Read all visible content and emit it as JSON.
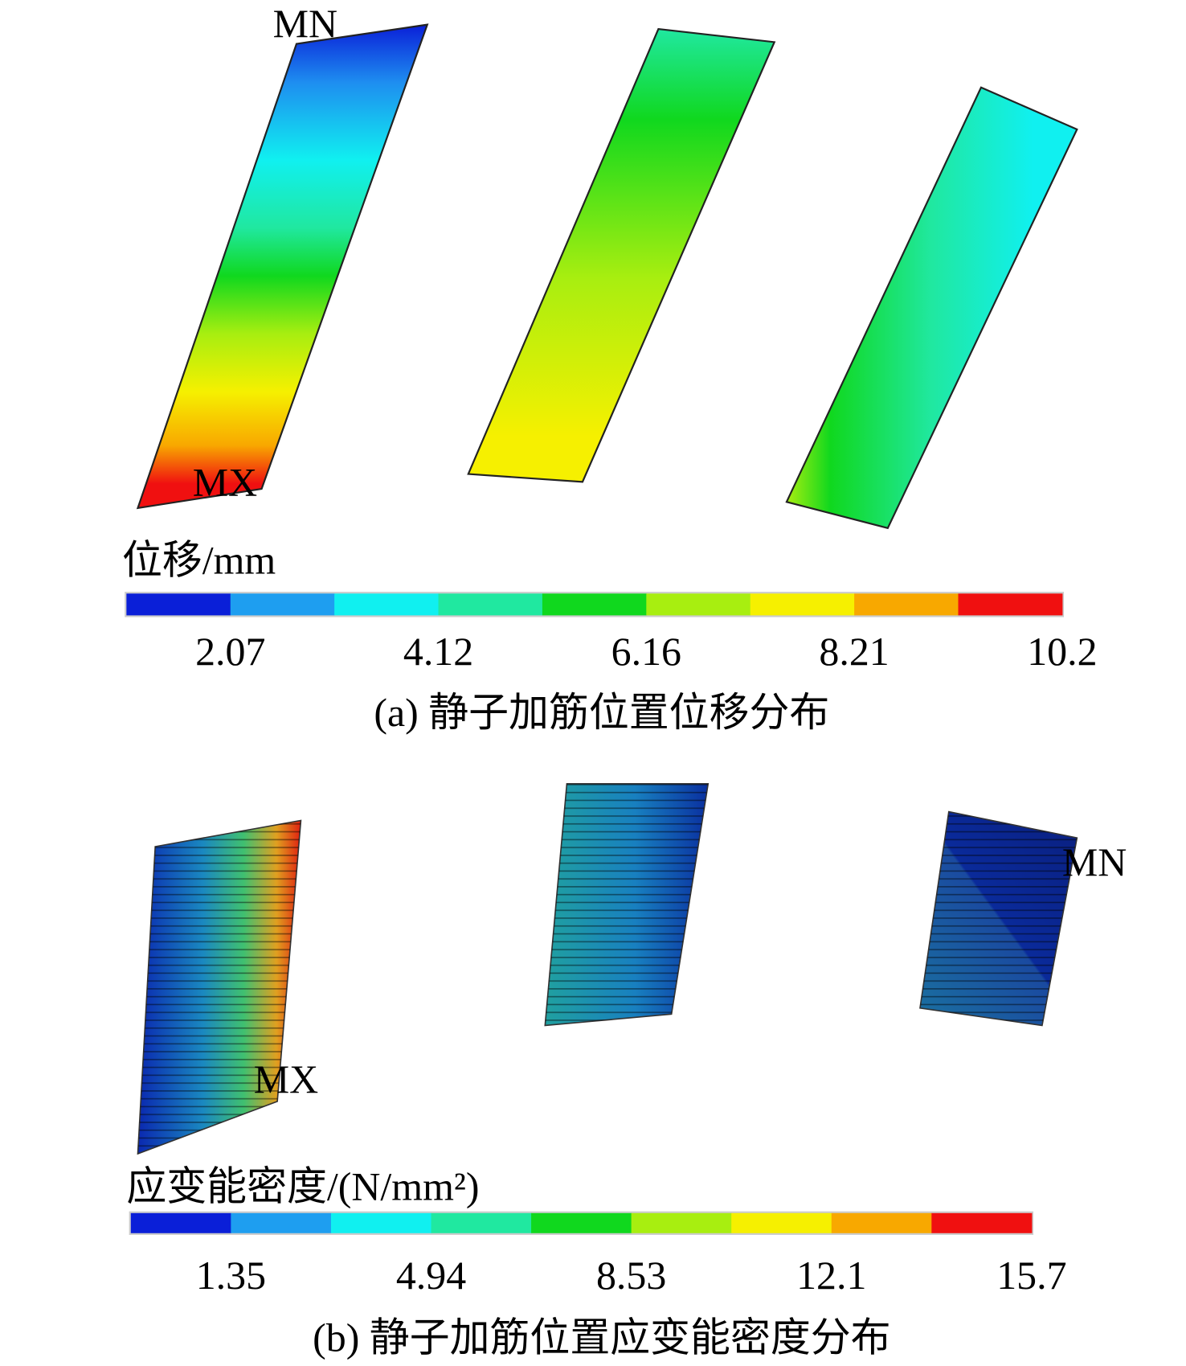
{
  "panels": [
    {
      "annotations": [
        "MN",
        "MX"
      ],
      "colorbar": {
        "title": "位移/mm",
        "ticks": [
          "2.07",
          "4.12",
          "6.16",
          "8.21",
          "10.2"
        ]
      },
      "caption": "(a) 静子加筋位置位移分布"
    },
    {
      "annotations": [
        "MN",
        "MX"
      ],
      "colorbar": {
        "title": "应变能密度/(N/mm²)",
        "ticks": [
          "1.35",
          "4.94",
          "8.53",
          "12.1",
          "15.7"
        ]
      },
      "caption": "(b) 静子加筋位置应变能密度分布"
    }
  ]
}
